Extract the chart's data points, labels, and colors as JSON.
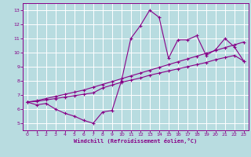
{
  "xlabel": "Windchill (Refroidissement éolien,°C)",
  "x_values": [
    0,
    1,
    2,
    3,
    4,
    5,
    6,
    7,
    8,
    9,
    10,
    11,
    12,
    13,
    14,
    15,
    16,
    17,
    18,
    19,
    20,
    21,
    22,
    23
  ],
  "line1_y": [
    6.5,
    6.3,
    6.4,
    6.0,
    5.7,
    5.5,
    5.2,
    5.0,
    5.8,
    5.9,
    8.0,
    11.0,
    11.9,
    13.0,
    12.5,
    9.6,
    10.9,
    10.9,
    11.2,
    9.8,
    10.2,
    11.0,
    10.4,
    9.4
  ],
  "line2_y": [
    6.5,
    6.55,
    6.65,
    6.75,
    6.85,
    6.95,
    7.05,
    7.15,
    7.5,
    7.7,
    7.9,
    8.05,
    8.2,
    8.4,
    8.55,
    8.7,
    8.85,
    9.0,
    9.15,
    9.3,
    9.5,
    9.65,
    9.8,
    9.4
  ],
  "line3_y": [
    6.5,
    6.6,
    6.75,
    6.9,
    7.05,
    7.2,
    7.35,
    7.55,
    7.75,
    7.95,
    8.15,
    8.35,
    8.55,
    8.75,
    8.95,
    9.15,
    9.35,
    9.55,
    9.75,
    9.95,
    10.15,
    10.35,
    10.55,
    10.75
  ],
  "line_color": "#880088",
  "bg_color": "#b8dce0",
  "grid_color": "#ffffff",
  "ylim": [
    4.5,
    13.5
  ],
  "xlim": [
    -0.5,
    23.5
  ],
  "yticks": [
    5,
    6,
    7,
    8,
    9,
    10,
    11,
    12,
    13
  ],
  "xticks": [
    0,
    1,
    2,
    3,
    4,
    5,
    6,
    7,
    8,
    9,
    10,
    11,
    12,
    13,
    14,
    15,
    16,
    17,
    18,
    19,
    20,
    21,
    22,
    23
  ]
}
